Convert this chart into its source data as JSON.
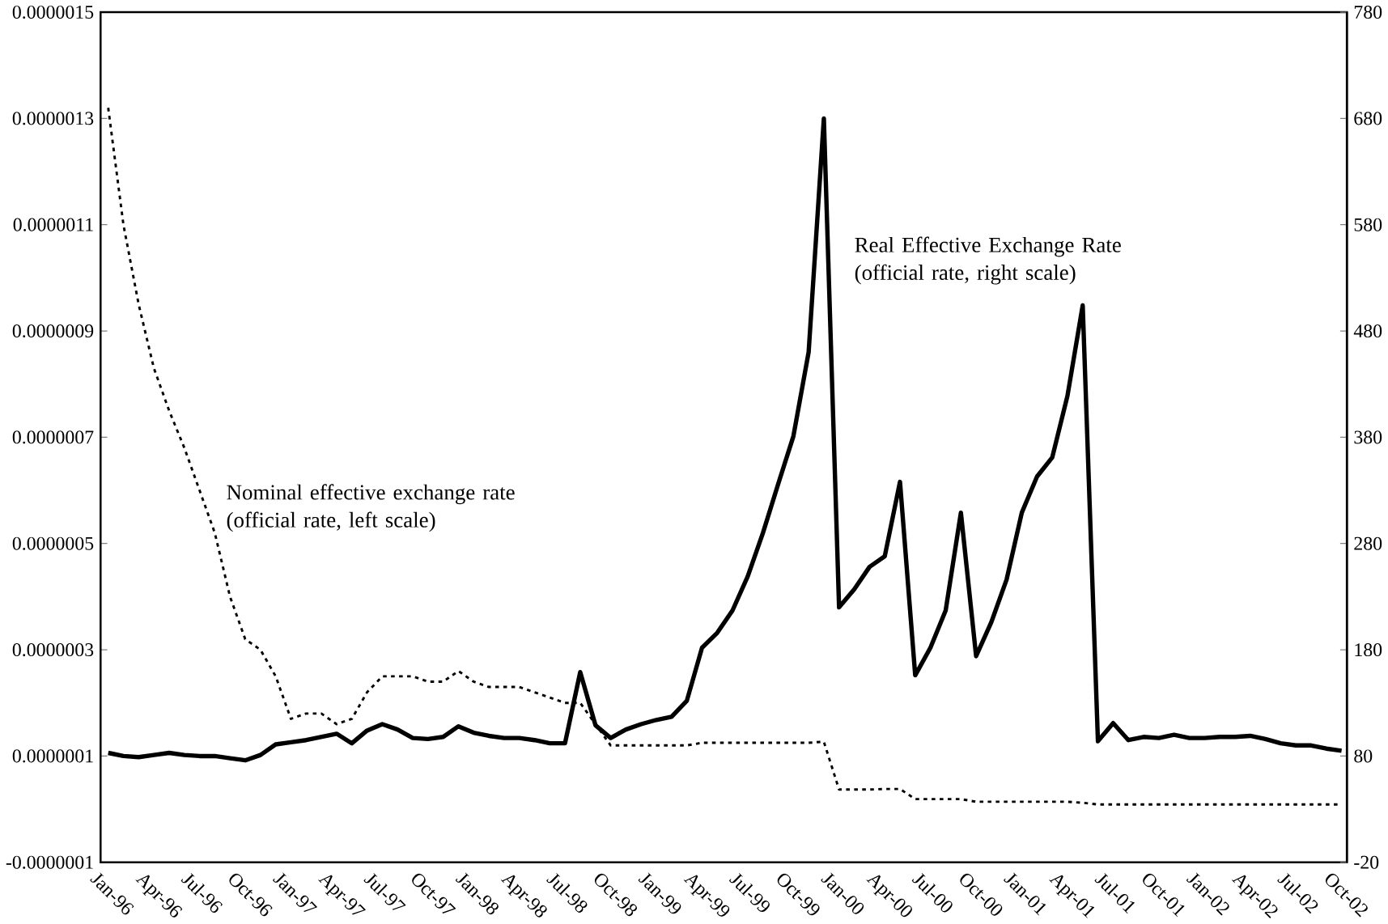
{
  "chart_data": {
    "type": "line",
    "categories": [
      "Jan-96",
      null,
      null,
      "Apr-96",
      null,
      null,
      "Jul-96",
      null,
      null,
      "Oct-96",
      null,
      null,
      "Jan-97",
      null,
      null,
      "Apr-97",
      null,
      null,
      "Jul-97",
      null,
      null,
      "Oct-97",
      null,
      null,
      "Jan-98",
      null,
      null,
      "Apr-98",
      null,
      null,
      "Jul-98",
      null,
      null,
      "Oct-98",
      null,
      null,
      "Jan-99",
      null,
      null,
      "Apr-99",
      null,
      null,
      "Jul-99",
      null,
      null,
      "Oct-99",
      null,
      null,
      "Jan-00",
      null,
      null,
      "Apr-00",
      null,
      null,
      "Jul-00",
      null,
      null,
      "Oct-00",
      null,
      null,
      "Jan-01",
      null,
      null,
      "Apr-01",
      null,
      null,
      "Jul-01",
      null,
      null,
      "Oct-01",
      null,
      null,
      "Jan-02",
      null,
      null,
      "Apr-02",
      null,
      null,
      "Jul-02",
      null,
      null,
      "Oct-02"
    ],
    "series": [
      {
        "name": "Nominal effective exchange rate (official rate, left scale)",
        "color": "#000000",
        "line_style": "dotted",
        "values": [
          1.32e-06,
          1.1e-06,
          9.5e-07,
          8.3e-07,
          7.5e-07,
          6.8e-07,
          6e-07,
          5.2e-07,
          4e-07,
          3.2e-07,
          3e-07,
          2.5e-07,
          1.7e-07,
          1.8e-07,
          1.8e-07,
          1.6e-07,
          1.7e-07,
          2.2e-07,
          2.5e-07,
          2.5e-07,
          2.5e-07,
          2.4e-07,
          2.4e-07,
          2.6e-07,
          2.4e-07,
          2.3e-07,
          2.3e-07,
          2.3e-07,
          2.2e-07,
          2.1e-07,
          2e-07,
          2e-07,
          1.6e-07,
          1.2e-07,
          1.2e-07,
          1.2e-07,
          1.2e-07,
          1.2e-07,
          1.2e-07,
          1.25e-07,
          1.25e-07,
          1.25e-07,
          1.25e-07,
          1.25e-07,
          1.25e-07,
          1.25e-07,
          1.25e-07,
          1.27e-07,
          3.7e-08,
          3.7e-08,
          3.7e-08,
          3.8e-08,
          3.8e-08,
          1.9e-08,
          1.9e-08,
          1.9e-08,
          1.9e-08,
          1.4e-08,
          1.4e-08,
          1.4e-08,
          1.4e-08,
          1.4e-08,
          1.4e-08,
          1.4e-08,
          1.2e-08,
          9e-09,
          9e-09,
          9e-09,
          9e-09,
          9e-09,
          9e-09,
          9e-09,
          9e-09,
          9e-09,
          9e-09,
          9e-09,
          9e-09,
          9e-09,
          9e-09,
          9e-09,
          9e-09,
          9e-09
        ]
      },
      {
        "name": "Real Effective Exchange Rate (official rate, right scale)",
        "color": "#000000",
        "line_style": "solid",
        "axis": "y2",
        "values": [
          83,
          80,
          79,
          81,
          83,
          81,
          80,
          80,
          78,
          76,
          81,
          91,
          93,
          95,
          98,
          101,
          92,
          104,
          110,
          105,
          97,
          96,
          98,
          108,
          102,
          99,
          97,
          97,
          95,
          92,
          92,
          159,
          109,
          97,
          105,
          110,
          114,
          117,
          132,
          182,
          196,
          217,
          249,
          290,
          336,
          381,
          460,
          680,
          220,
          237,
          258,
          268,
          338,
          156,
          182,
          217,
          309,
          174,
          206,
          246,
          309,
          343,
          361,
          419,
          504,
          94,
          111,
          95,
          98,
          97,
          100,
          97,
          97,
          98,
          98,
          99,
          96,
          92,
          90,
          90,
          87,
          85
        ]
      }
    ],
    "ylim": [
      -1e-07,
      1.5e-06
    ],
    "yticks": [
      {
        "value": -1e-07,
        "label": "-0.0000001"
      },
      {
        "value": 1e-07,
        "label": "0.0000001"
      },
      {
        "value": 3e-07,
        "label": "0.0000003"
      },
      {
        "value": 5e-07,
        "label": "0.0000005"
      },
      {
        "value": 7e-07,
        "label": "0.0000007"
      },
      {
        "value": 9e-07,
        "label": "0.0000009"
      },
      {
        "value": 1.1e-06,
        "label": "0.0000011"
      },
      {
        "value": 1.3e-06,
        "label": "0.0000013"
      },
      {
        "value": 1.5e-06,
        "label": "0.0000015"
      }
    ],
    "y2lim": [
      -20,
      780
    ],
    "y2ticks": [
      -20,
      80,
      180,
      280,
      380,
      480,
      580,
      680,
      780
    ],
    "grid": false,
    "legend": false,
    "marker": "none"
  }
}
